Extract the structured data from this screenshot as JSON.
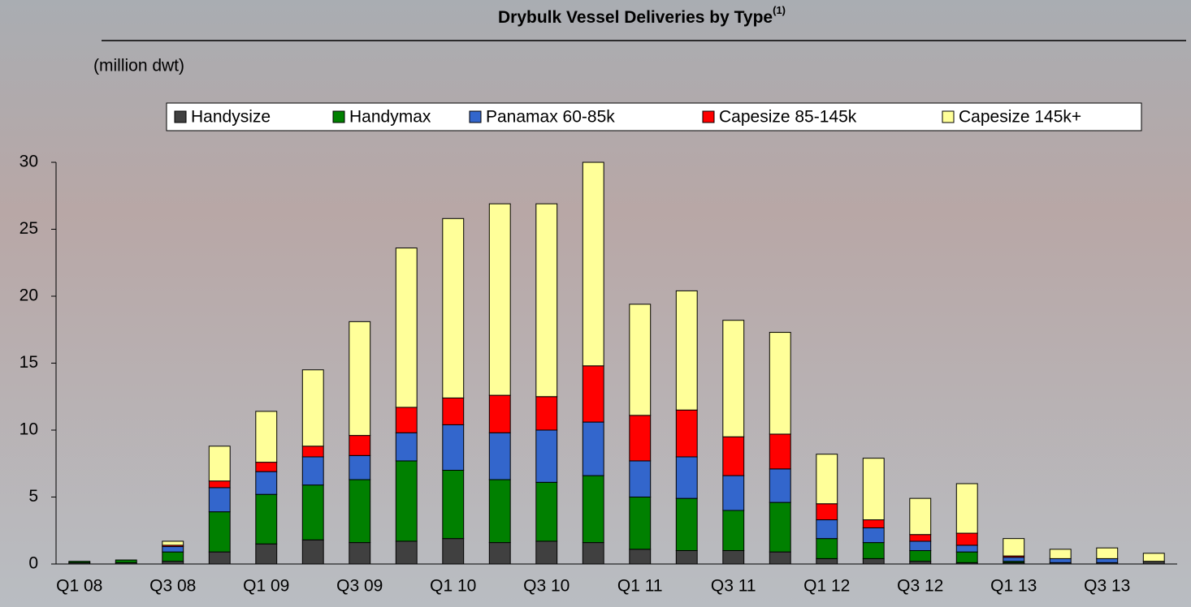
{
  "chart_data": {
    "type": "stacked_bar",
    "title": "Drybulk Vessel Deliveries by Type",
    "title_note": "(1)",
    "y_label": "(million dwt)",
    "categories": [
      "Q1 08",
      null,
      "Q3 08",
      null,
      "Q1 09",
      null,
      "Q3 09",
      null,
      "Q1 10",
      null,
      "Q3 10",
      null,
      "Q1 11",
      null,
      "Q3 11",
      null,
      "Q1 12",
      null,
      "Q3 12",
      null,
      "Q1 13",
      null,
      "Q3 13",
      null
    ],
    "series": [
      {
        "name": "Handysize",
        "color": "#404040",
        "values": [
          0.1,
          0.1,
          0.2,
          0.9,
          1.5,
          1.8,
          1.6,
          1.7,
          1.9,
          1.6,
          1.7,
          1.6,
          1.1,
          1.0,
          1.0,
          0.9,
          0.4,
          0.4,
          0.2,
          0.1,
          0.1,
          0.1,
          0.1,
          0.2
        ]
      },
      {
        "name": "Handymax",
        "color": "#008000",
        "values": [
          0.1,
          0.2,
          0.7,
          3.0,
          3.7,
          4.1,
          4.7,
          6.0,
          5.1,
          4.7,
          4.4,
          5.0,
          3.9,
          3.9,
          3.0,
          3.7,
          1.5,
          1.2,
          0.8,
          0.8,
          0.1,
          0,
          0,
          0
        ]
      },
      {
        "name": "Panamax 60-85k",
        "color": "#3366cc",
        "values": [
          0,
          0,
          0.4,
          1.8,
          1.7,
          2.1,
          1.8,
          2.1,
          3.4,
          3.5,
          3.9,
          4.0,
          2.7,
          3.1,
          2.6,
          2.5,
          1.4,
          1.1,
          0.7,
          0.5,
          0.3,
          0.3,
          0.3,
          0
        ]
      },
      {
        "name": "Capesize 85-145k",
        "color": "#ff0000",
        "values": [
          0,
          0,
          0.1,
          0.5,
          0.7,
          0.8,
          1.5,
          1.9,
          2.0,
          2.8,
          2.5,
          4.2,
          3.4,
          3.5,
          2.9,
          2.6,
          1.2,
          0.6,
          0.5,
          0.9,
          0.1,
          0,
          0,
          0
        ]
      },
      {
        "name": "Capesize 145k+",
        "color": "#ffff99",
        "values": [
          0,
          0,
          0.3,
          2.6,
          3.8,
          5.7,
          8.5,
          11.9,
          13.4,
          14.3,
          14.4,
          15.2,
          8.3,
          8.9,
          8.7,
          7.6,
          3.7,
          4.6,
          2.7,
          3.7,
          1.3,
          0.7,
          0.8,
          0.6
        ]
      }
    ],
    "ylim": [
      0,
      30
    ],
    "yticks": [
      0,
      5,
      10,
      15,
      20,
      25,
      30
    ]
  }
}
